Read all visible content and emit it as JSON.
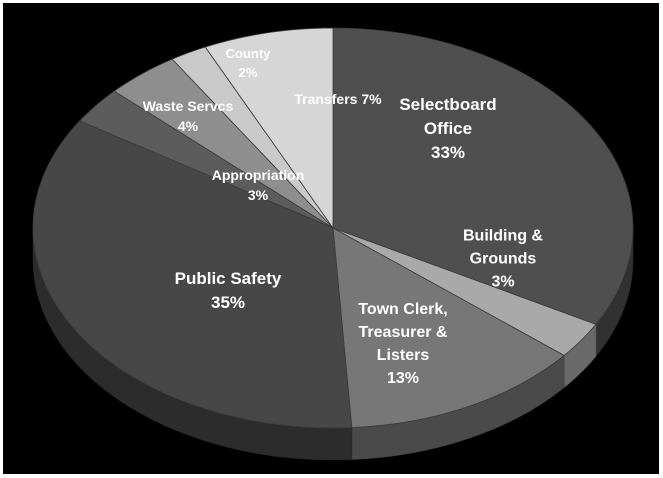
{
  "chart_data": {
    "type": "pie",
    "title": "",
    "three_d": true,
    "slices": [
      {
        "label_lines": [
          "Selectboard",
          "Office",
          "33%"
        ],
        "value": 33,
        "color": "#4f4f4f"
      },
      {
        "label_lines": [
          "Building &",
          "Grounds",
          "3%"
        ],
        "value": 3,
        "color": "#a9a9a9"
      },
      {
        "label_lines": [
          "Town Clerk,",
          "Treasurer &",
          "Listers",
          "13%"
        ],
        "value": 13,
        "color": "#777777"
      },
      {
        "label_lines": [
          "Public Safety",
          "35%"
        ],
        "value": 35,
        "color": "#474747"
      },
      {
        "label_lines": [
          "Appropriation",
          "3%"
        ],
        "value": 3,
        "color": "#5c5c5c"
      },
      {
        "label_lines": [
          "Waste Servcs",
          "4%"
        ],
        "value": 4,
        "color": "#8e8e8e"
      },
      {
        "label_lines": [
          "County",
          "2%"
        ],
        "value": 2,
        "color": "#c9c9c9"
      },
      {
        "label_lines": [
          "Transfers 7%"
        ],
        "value": 7,
        "color": "#d6d6d6"
      }
    ]
  }
}
